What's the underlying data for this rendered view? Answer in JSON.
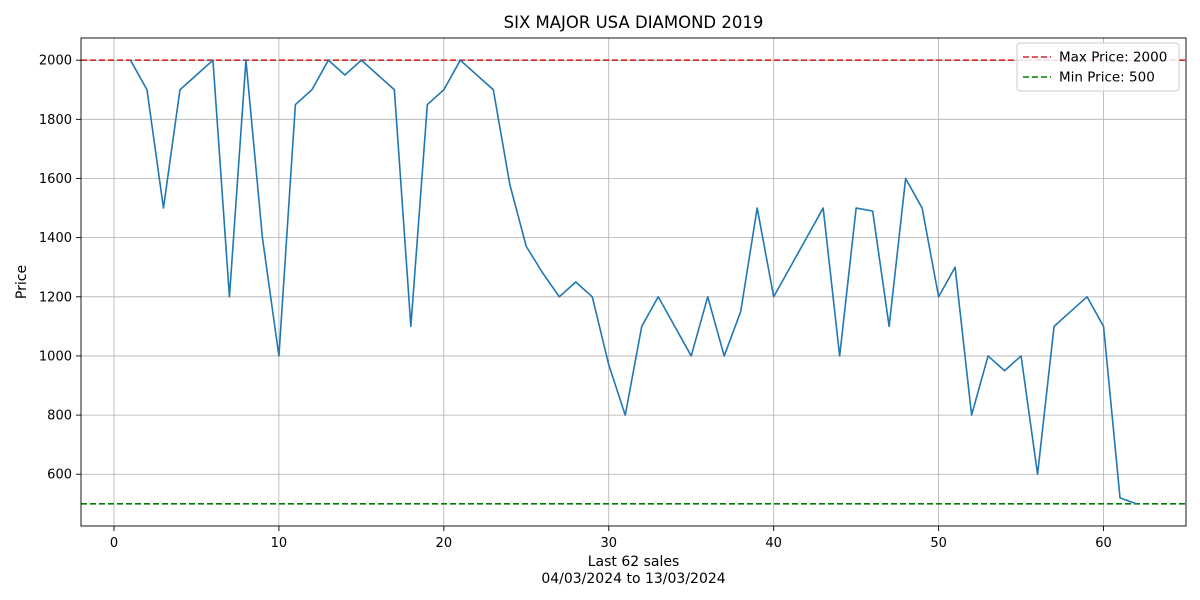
{
  "chart_data": {
    "type": "line",
    "title": "SIX MAJOR USA DIAMOND 2019",
    "xlabel": "Last 62 sales",
    "xlabel_sub": "04/03/2024 to 13/03/2024",
    "ylabel": "Price",
    "xlim": [
      -2,
      65
    ],
    "ylim": [
      425,
      2075
    ],
    "xticks": [
      0,
      10,
      20,
      30,
      40,
      50,
      60
    ],
    "yticks": [
      600,
      800,
      1000,
      1200,
      1400,
      1600,
      1800,
      2000
    ],
    "grid": true,
    "legend_position": "top-right",
    "series": [
      {
        "color": "#1f77b4",
        "x": [
          1,
          2,
          3,
          4,
          5,
          6,
          7,
          8,
          9,
          10,
          11,
          12,
          13,
          14,
          15,
          16,
          17,
          18,
          19,
          20,
          21,
          22,
          23,
          24,
          25,
          26,
          27,
          28,
          29,
          30,
          31,
          32,
          33,
          34,
          35,
          36,
          37,
          38,
          39,
          40,
          41,
          42,
          43,
          44,
          45,
          46,
          47,
          48,
          49,
          50,
          51,
          52,
          53,
          54,
          55,
          56,
          57,
          58,
          59,
          60,
          61,
          62
        ],
        "y": [
          2000,
          1900,
          1500,
          1900,
          1950,
          2000,
          1200,
          2000,
          1400,
          1000,
          1850,
          1900,
          2000,
          1950,
          2000,
          1950,
          1900,
          1100,
          1850,
          1900,
          2000,
          1950,
          1900,
          1580,
          1370,
          1280,
          1200,
          1250,
          1200,
          970,
          800,
          1100,
          1200,
          1100,
          1000,
          1200,
          1000,
          1150,
          1500,
          1200,
          1300,
          1400,
          1500,
          1000,
          1500,
          1490,
          1100,
          1600,
          1500,
          1200,
          1300,
          800,
          1000,
          950,
          1000,
          600,
          1100,
          1150,
          1200,
          1100,
          520,
          500
        ]
      }
    ],
    "reference_lines": [
      {
        "name": "Max Price: 2000",
        "y": 2000,
        "color": "#d62728",
        "style": "dashed"
      },
      {
        "name": "Min Price: 500",
        "y": 500,
        "color": "#008000",
        "style": "dashed"
      }
    ]
  }
}
